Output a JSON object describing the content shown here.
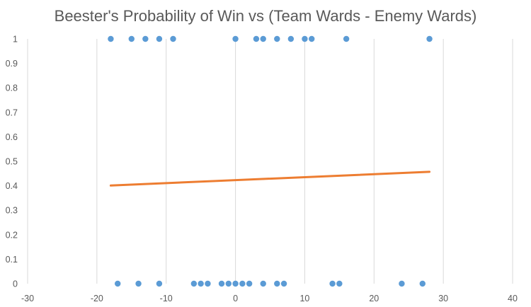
{
  "chart_data": {
    "type": "scatter",
    "title": "Beester's Probability of Win vs (Team Wards - Enemy Wards)",
    "xlabel": "",
    "ylabel": "",
    "xlim": [
      -30,
      40
    ],
    "ylim": [
      0,
      1
    ],
    "x_ticks": [
      "-30",
      "-20",
      "-10",
      "0",
      "10",
      "20",
      "30",
      "40"
    ],
    "y_ticks": [
      "0",
      "0.1",
      "0.2",
      "0.3",
      "0.4",
      "0.5",
      "0.6",
      "0.7",
      "0.8",
      "0.9",
      "1"
    ],
    "grid": "vertical",
    "legend": "none",
    "series": [
      {
        "type": "scatter",
        "color": "#5b9bd5",
        "points": [
          [
            -18,
            1
          ],
          [
            -15,
            1
          ],
          [
            -13,
            1
          ],
          [
            -11,
            1
          ],
          [
            -9,
            1
          ],
          [
            0,
            1
          ],
          [
            3,
            1
          ],
          [
            4,
            1
          ],
          [
            6,
            1
          ],
          [
            8,
            1
          ],
          [
            10,
            1
          ],
          [
            11,
            1
          ],
          [
            16,
            1
          ],
          [
            28,
            1
          ],
          [
            -17,
            0
          ],
          [
            -14,
            0
          ],
          [
            -11,
            0
          ],
          [
            -6,
            0
          ],
          [
            -5,
            0
          ],
          [
            -4,
            0
          ],
          [
            -2,
            0
          ],
          [
            -1,
            0
          ],
          [
            0,
            0
          ],
          [
            1,
            0
          ],
          [
            2,
            0
          ],
          [
            4,
            0
          ],
          [
            6,
            0
          ],
          [
            7,
            0
          ],
          [
            14,
            0
          ],
          [
            15,
            0
          ],
          [
            24,
            0
          ],
          [
            27,
            0
          ]
        ]
      },
      {
        "type": "line",
        "color": "#ed7d31",
        "points": [
          [
            -18,
            0.401
          ],
          [
            28,
            0.457
          ]
        ]
      }
    ]
  }
}
